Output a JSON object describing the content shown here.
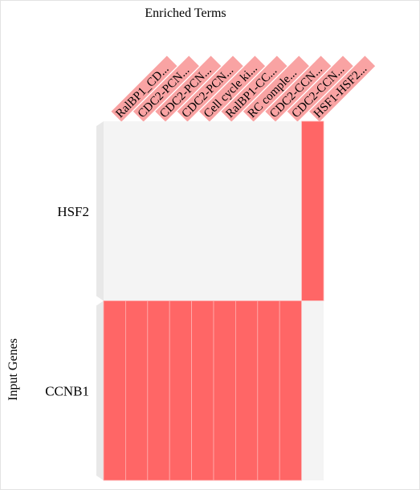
{
  "chart_data": {
    "type": "heatmap",
    "title": "Enriched Terms",
    "ylabel": "Input Genes",
    "columns": [
      "RalBP1_CD...",
      "CDC2-PCN...",
      "CDC2-PCN...",
      "CDC2-PCN...",
      "Cell cycle ki...",
      "RalBP1-CC...",
      "RC comple...",
      "CDC2-CCN...",
      "CDC2-CCN...",
      "HSF1-HSF2..."
    ],
    "rows": [
      "HSF2",
      "CCNB1"
    ],
    "matrix": [
      [
        0,
        0,
        0,
        0,
        0,
        0,
        0,
        0,
        0,
        1
      ],
      [
        1,
        1,
        1,
        1,
        1,
        1,
        1,
        1,
        1,
        0
      ]
    ],
    "colors": {
      "hit": "#ff6666",
      "miss": "#f4f4f4",
      "column_label_bg": "#f9a3a3",
      "grid_line": "#ffb0b0",
      "side_bar": "#e8e8e8"
    }
  }
}
